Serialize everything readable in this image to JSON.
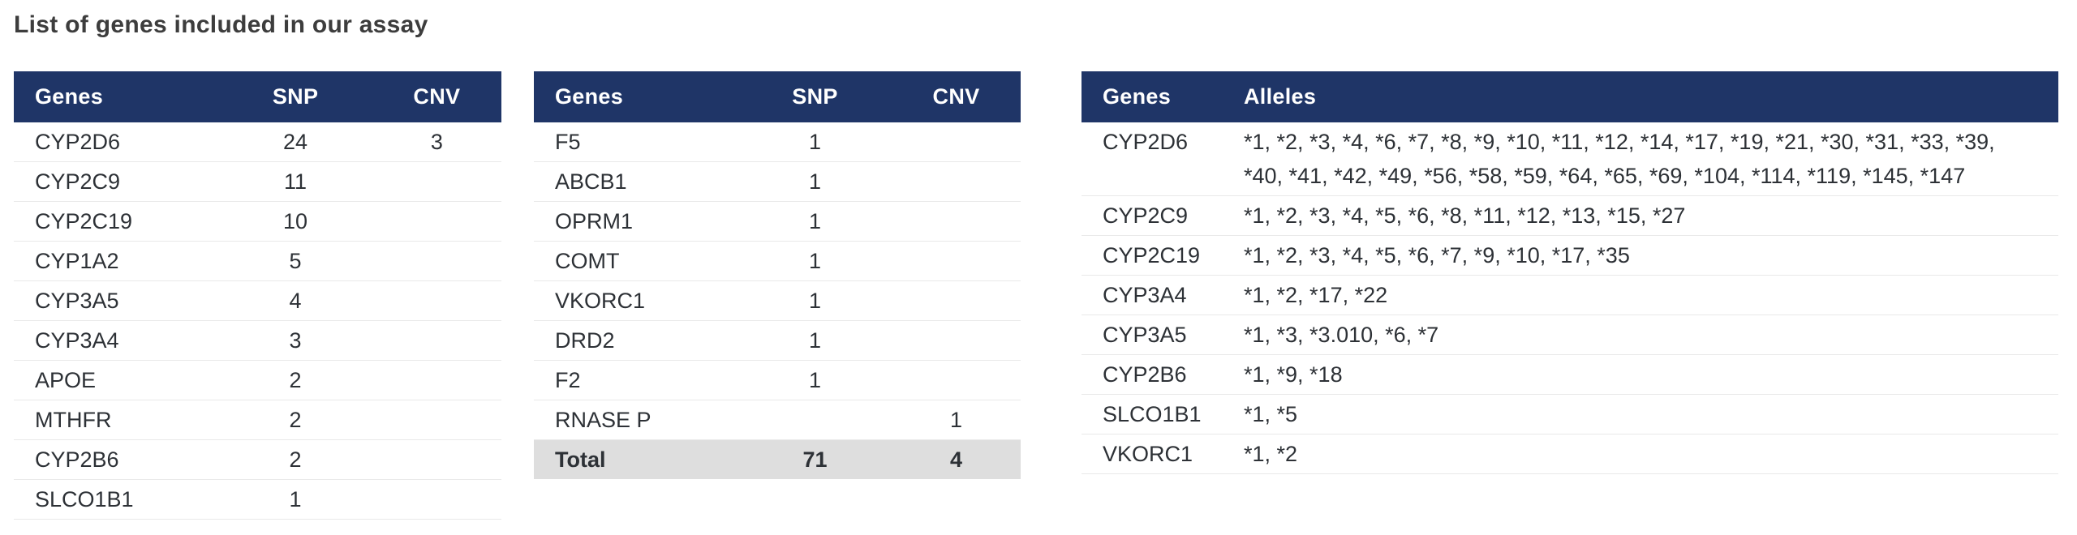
{
  "title": "List of genes included in our assay",
  "colors": {
    "header_bg": "#1f3567",
    "header_text": "#ffffff",
    "body_text": "#2d3136",
    "title_color": "#3d3d3d",
    "total_row_bg": "#dedede",
    "row_divider": "#e9e9e9",
    "page_bg": "#ffffff"
  },
  "snp_tables": [
    {
      "columns": {
        "gene": "Genes",
        "snp": "SNP",
        "cnv": "CNV"
      },
      "rows": [
        {
          "gene": "CYP2D6",
          "snp": "24",
          "cnv": "3"
        },
        {
          "gene": "CYP2C9",
          "snp": "11",
          "cnv": ""
        },
        {
          "gene": "CYP2C19",
          "snp": "10",
          "cnv": ""
        },
        {
          "gene": "CYP1A2",
          "snp": "5",
          "cnv": ""
        },
        {
          "gene": "CYP3A5",
          "snp": "4",
          "cnv": ""
        },
        {
          "gene": "CYP3A4",
          "snp": "3",
          "cnv": ""
        },
        {
          "gene": "APOE",
          "snp": "2",
          "cnv": ""
        },
        {
          "gene": "MTHFR",
          "snp": "2",
          "cnv": ""
        },
        {
          "gene": "CYP2B6",
          "snp": "2",
          "cnv": ""
        },
        {
          "gene": "SLCO1B1",
          "snp": "1",
          "cnv": ""
        }
      ]
    },
    {
      "columns": {
        "gene": "Genes",
        "snp": "SNP",
        "cnv": "CNV"
      },
      "rows": [
        {
          "gene": "F5",
          "snp": "1",
          "cnv": ""
        },
        {
          "gene": "ABCB1",
          "snp": "1",
          "cnv": ""
        },
        {
          "gene": "OPRM1",
          "snp": "1",
          "cnv": ""
        },
        {
          "gene": "COMT",
          "snp": "1",
          "cnv": ""
        },
        {
          "gene": "VKORC1",
          "snp": "1",
          "cnv": ""
        },
        {
          "gene": "DRD2",
          "snp": "1",
          "cnv": ""
        },
        {
          "gene": "F2",
          "snp": "1",
          "cnv": ""
        },
        {
          "gene": "RNASE P",
          "snp": "",
          "cnv": "1"
        }
      ],
      "total": {
        "label": "Total",
        "snp": "71",
        "cnv": "4"
      }
    }
  ],
  "allele_table": {
    "columns": {
      "gene": "Genes",
      "alleles": "Alleles"
    },
    "rows": [
      {
        "gene": "CYP2D6",
        "alleles": "*1, *2, *3, *4, *6, *7, *8, *9, *10, *11, *12, *14, *17, *19, *21, *30, *31, *33, *39, *40, *41, *42, *49, *56, *58, *59, *64, *65, *69, *104, *114, *119, *145, *147"
      },
      {
        "gene": "CYP2C9",
        "alleles": "*1, *2, *3, *4, *5, *6, *8, *11, *12, *13, *15, *27"
      },
      {
        "gene": "CYP2C19",
        "alleles": "*1, *2, *3, *4, *5, *6, *7, *9, *10, *17, *35"
      },
      {
        "gene": "CYP3A4",
        "alleles": "*1, *2, *17, *22"
      },
      {
        "gene": "CYP3A5",
        "alleles": "*1, *3, *3.010, *6, *7"
      },
      {
        "gene": "CYP2B6",
        "alleles": "*1, *9, *18"
      },
      {
        "gene": "SLCO1B1",
        "alleles": "*1, *5"
      },
      {
        "gene": "VKORC1",
        "alleles": "*1, *2"
      }
    ]
  }
}
